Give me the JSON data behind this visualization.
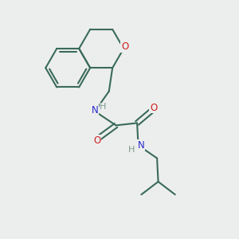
{
  "background_color": "#eceeed",
  "bond_color": "#3a6b5a",
  "N_color": "#2828cc",
  "O_color": "#cc2020",
  "H_color": "#7a9a8a",
  "line_width": 1.5,
  "figsize": [
    3.0,
    3.0
  ],
  "dpi": 100,
  "xlim": [
    0,
    10
  ],
  "ylim": [
    0,
    10
  ]
}
